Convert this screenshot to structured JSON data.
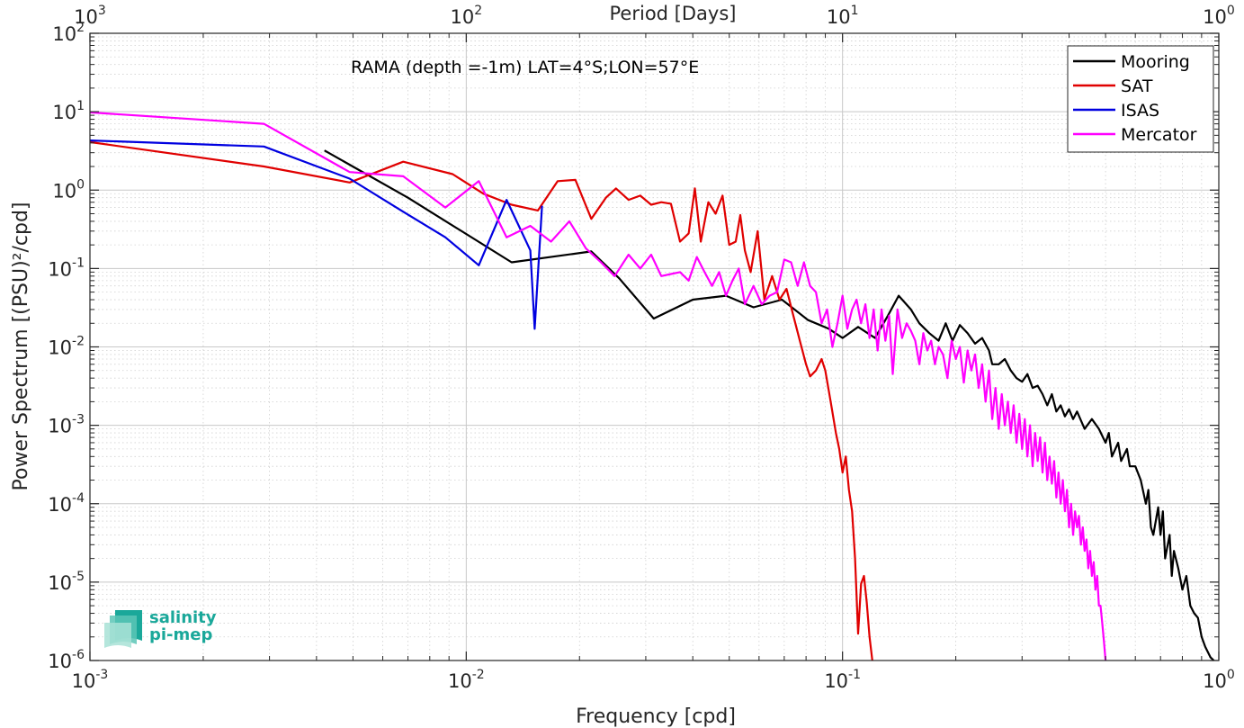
{
  "chart_data": {
    "type": "line",
    "xscale": "log",
    "yscale": "log",
    "xlim": [
      0.001,
      1
    ],
    "ylim": [
      1e-06,
      100
    ],
    "grid": true,
    "xlabel": "Frequency [cpd]",
    "ylabel": "Power Spectrum [(PSU)²/cpd]",
    "top_axis_label": "Period [Days]",
    "annotation": "RAMA (depth =-1m) LAT=4°S;LON=57°E",
    "legend_position": "top-right",
    "x_ticks": [
      {
        "value": 0.001,
        "base": "10",
        "exp": "-3"
      },
      {
        "value": 0.01,
        "base": "10",
        "exp": "-2"
      },
      {
        "value": 0.1,
        "base": "10",
        "exp": "-1"
      },
      {
        "value": 1,
        "base": "10",
        "exp": "0"
      }
    ],
    "top_ticks": [
      {
        "value": 0.001,
        "base": "10",
        "exp": "3"
      },
      {
        "value": 0.01,
        "base": "10",
        "exp": "2"
      },
      {
        "value": 0.1,
        "base": "10",
        "exp": "1"
      },
      {
        "value": 1,
        "base": "10",
        "exp": "0"
      }
    ],
    "y_ticks": [
      {
        "value": 1e-06,
        "base": "10",
        "exp": "-6"
      },
      {
        "value": 1e-05,
        "base": "10",
        "exp": "-5"
      },
      {
        "value": 0.0001,
        "base": "10",
        "exp": "-4"
      },
      {
        "value": 0.001,
        "base": "10",
        "exp": "-3"
      },
      {
        "value": 0.01,
        "base": "10",
        "exp": "-2"
      },
      {
        "value": 0.1,
        "base": "10",
        "exp": "-1"
      },
      {
        "value": 1,
        "base": "10",
        "exp": "0"
      },
      {
        "value": 10,
        "base": "10",
        "exp": "1"
      },
      {
        "value": 100,
        "base": "10",
        "exp": "2"
      }
    ],
    "series": [
      {
        "name": "Mooring",
        "color": "#000000",
        "points": [
          [
            0.0042,
            3.2
          ],
          [
            0.007,
            0.8
          ],
          [
            0.0132,
            0.12
          ],
          [
            0.0215,
            0.165
          ],
          [
            0.0255,
            0.075
          ],
          [
            0.0315,
            0.023
          ],
          [
            0.04,
            0.04
          ],
          [
            0.049,
            0.045
          ],
          [
            0.058,
            0.032
          ],
          [
            0.069,
            0.04
          ],
          [
            0.081,
            0.022
          ],
          [
            0.092,
            0.017
          ],
          [
            0.1,
            0.013
          ],
          [
            0.11,
            0.018
          ],
          [
            0.122,
            0.013
          ],
          [
            0.132,
            0.025
          ],
          [
            0.141,
            0.045
          ],
          [
            0.152,
            0.03
          ],
          [
            0.16,
            0.02
          ],
          [
            0.17,
            0.015
          ],
          [
            0.18,
            0.012
          ],
          [
            0.188,
            0.02
          ],
          [
            0.196,
            0.012
          ],
          [
            0.205,
            0.019
          ],
          [
            0.215,
            0.015
          ],
          [
            0.225,
            0.011
          ],
          [
            0.235,
            0.013
          ],
          [
            0.245,
            0.009
          ],
          [
            0.25,
            0.006
          ],
          [
            0.26,
            0.006
          ],
          [
            0.27,
            0.007
          ],
          [
            0.28,
            0.005
          ],
          [
            0.29,
            0.004
          ],
          [
            0.3,
            0.0036
          ],
          [
            0.31,
            0.0045
          ],
          [
            0.32,
            0.003
          ],
          [
            0.33,
            0.0032
          ],
          [
            0.34,
            0.0025
          ],
          [
            0.35,
            0.0018
          ],
          [
            0.36,
            0.0025
          ],
          [
            0.37,
            0.0015
          ],
          [
            0.38,
            0.0018
          ],
          [
            0.39,
            0.0013
          ],
          [
            0.4,
            0.0016
          ],
          [
            0.41,
            0.0012
          ],
          [
            0.42,
            0.0015
          ],
          [
            0.44,
            0.0009
          ],
          [
            0.46,
            0.0012
          ],
          [
            0.48,
            0.0009
          ],
          [
            0.5,
            0.0006
          ],
          [
            0.51,
            0.0008
          ],
          [
            0.52,
            0.0004
          ],
          [
            0.54,
            0.0006
          ],
          [
            0.55,
            0.00035
          ],
          [
            0.57,
            0.0005
          ],
          [
            0.58,
            0.0003
          ],
          [
            0.6,
            0.0003
          ],
          [
            0.62,
            0.0002
          ],
          [
            0.64,
            0.0001
          ],
          [
            0.65,
            0.00015
          ],
          [
            0.66,
            5e-05
          ],
          [
            0.67,
            4e-05
          ],
          [
            0.69,
            9e-05
          ],
          [
            0.7,
            4e-05
          ],
          [
            0.71,
            8e-05
          ],
          [
            0.72,
            2e-05
          ],
          [
            0.74,
            4e-05
          ],
          [
            0.75,
            1.2e-05
          ],
          [
            0.76,
            2.5e-05
          ],
          [
            0.78,
            1.5e-05
          ],
          [
            0.8,
            8e-06
          ],
          [
            0.82,
            1.2e-05
          ],
          [
            0.84,
            5e-06
          ],
          [
            0.86,
            4e-06
          ],
          [
            0.88,
            3.5e-06
          ],
          [
            0.9,
            2e-06
          ],
          [
            0.92,
            1.5e-06
          ],
          [
            0.95,
            1.1e-06
          ],
          [
            0.97,
            1e-06
          ]
        ]
      },
      {
        "name": "SAT",
        "color": "#e00000",
        "points": [
          [
            0.001,
            4.1
          ],
          [
            0.0029,
            2.0
          ],
          [
            0.0049,
            1.25
          ],
          [
            0.0068,
            2.3
          ],
          [
            0.0092,
            1.6
          ],
          [
            0.0111,
            0.9
          ],
          [
            0.0132,
            0.65
          ],
          [
            0.0155,
            0.55
          ],
          [
            0.0175,
            1.3
          ],
          [
            0.0195,
            1.35
          ],
          [
            0.0215,
            0.43
          ],
          [
            0.0235,
            0.8
          ],
          [
            0.025,
            1.05
          ],
          [
            0.027,
            0.75
          ],
          [
            0.029,
            0.85
          ],
          [
            0.031,
            0.65
          ],
          [
            0.033,
            0.7
          ],
          [
            0.035,
            0.67
          ],
          [
            0.037,
            0.22
          ],
          [
            0.039,
            0.28
          ],
          [
            0.0405,
            1.05
          ],
          [
            0.042,
            0.22
          ],
          [
            0.044,
            0.7
          ],
          [
            0.046,
            0.5
          ],
          [
            0.048,
            0.85
          ],
          [
            0.05,
            0.2
          ],
          [
            0.052,
            0.22
          ],
          [
            0.0535,
            0.48
          ],
          [
            0.055,
            0.17
          ],
          [
            0.057,
            0.09
          ],
          [
            0.0595,
            0.3
          ],
          [
            0.062,
            0.04
          ],
          [
            0.065,
            0.08
          ],
          [
            0.068,
            0.04
          ],
          [
            0.071,
            0.055
          ],
          [
            0.074,
            0.025
          ],
          [
            0.077,
            0.012
          ],
          [
            0.08,
            0.006
          ],
          [
            0.082,
            0.0042
          ],
          [
            0.085,
            0.005
          ],
          [
            0.088,
            0.007
          ],
          [
            0.09,
            0.005
          ],
          [
            0.093,
            0.002
          ],
          [
            0.096,
            0.0008
          ],
          [
            0.098,
            0.0005
          ],
          [
            0.1,
            0.00025
          ],
          [
            0.102,
            0.0004
          ],
          [
            0.104,
            0.00015
          ],
          [
            0.106,
            8e-05
          ],
          [
            0.108,
            2e-05
          ],
          [
            0.11,
            2.2e-06
          ],
          [
            0.112,
            9.5e-06
          ],
          [
            0.114,
            1.2e-05
          ],
          [
            0.116,
            5.5e-06
          ],
          [
            0.118,
            2e-06
          ],
          [
            0.12,
            1e-06
          ]
        ]
      },
      {
        "name": "ISAS",
        "color": "#0000e0",
        "points": [
          [
            0.001,
            4.3
          ],
          [
            0.0029,
            3.6
          ],
          [
            0.0049,
            1.4
          ],
          [
            0.0068,
            0.53
          ],
          [
            0.0088,
            0.25
          ],
          [
            0.0108,
            0.11
          ],
          [
            0.0128,
            0.75
          ],
          [
            0.0148,
            0.17
          ],
          [
            0.0152,
            0.017
          ],
          [
            0.0159,
            0.63
          ]
        ]
      },
      {
        "name": "Mercator",
        "color": "#ff00ff",
        "points": [
          [
            0.001,
            9.8
          ],
          [
            0.0029,
            7.0
          ],
          [
            0.0049,
            1.7
          ],
          [
            0.0068,
            1.5
          ],
          [
            0.0088,
            0.6
          ],
          [
            0.0108,
            1.3
          ],
          [
            0.0128,
            0.25
          ],
          [
            0.0148,
            0.35
          ],
          [
            0.0168,
            0.22
          ],
          [
            0.0188,
            0.4
          ],
          [
            0.0208,
            0.18
          ],
          [
            0.0228,
            0.12
          ],
          [
            0.0248,
            0.08
          ],
          [
            0.027,
            0.15
          ],
          [
            0.029,
            0.1
          ],
          [
            0.031,
            0.15
          ],
          [
            0.033,
            0.08
          ],
          [
            0.035,
            0.085
          ],
          [
            0.037,
            0.09
          ],
          [
            0.039,
            0.07
          ],
          [
            0.041,
            0.14
          ],
          [
            0.043,
            0.09
          ],
          [
            0.045,
            0.06
          ],
          [
            0.047,
            0.09
          ],
          [
            0.049,
            0.045
          ],
          [
            0.051,
            0.07
          ],
          [
            0.053,
            0.1
          ],
          [
            0.055,
            0.035
          ],
          [
            0.058,
            0.06
          ],
          [
            0.061,
            0.035
          ],
          [
            0.064,
            0.045
          ],
          [
            0.067,
            0.05
          ],
          [
            0.07,
            0.13
          ],
          [
            0.073,
            0.12
          ],
          [
            0.076,
            0.06
          ],
          [
            0.079,
            0.12
          ],
          [
            0.082,
            0.06
          ],
          [
            0.085,
            0.05
          ],
          [
            0.088,
            0.02
          ],
          [
            0.091,
            0.03
          ],
          [
            0.094,
            0.01
          ],
          [
            0.097,
            0.02
          ],
          [
            0.1,
            0.045
          ],
          [
            0.103,
            0.017
          ],
          [
            0.106,
            0.03
          ],
          [
            0.109,
            0.04
          ],
          [
            0.112,
            0.02
          ],
          [
            0.115,
            0.035
          ],
          [
            0.118,
            0.013
          ],
          [
            0.121,
            0.03
          ],
          [
            0.124,
            0.009
          ],
          [
            0.127,
            0.03
          ],
          [
            0.13,
            0.012
          ],
          [
            0.133,
            0.025
          ],
          [
            0.136,
            0.0045
          ],
          [
            0.14,
            0.03
          ],
          [
            0.144,
            0.013
          ],
          [
            0.148,
            0.02
          ],
          [
            0.152,
            0.016
          ],
          [
            0.156,
            0.012
          ],
          [
            0.16,
            0.006
          ],
          [
            0.164,
            0.015
          ],
          [
            0.168,
            0.009
          ],
          [
            0.172,
            0.012
          ],
          [
            0.176,
            0.006
          ],
          [
            0.18,
            0.01
          ],
          [
            0.185,
            0.008
          ],
          [
            0.19,
            0.004
          ],
          [
            0.195,
            0.012
          ],
          [
            0.2,
            0.007
          ],
          [
            0.205,
            0.01
          ],
          [
            0.21,
            0.0035
          ],
          [
            0.215,
            0.009
          ],
          [
            0.22,
            0.005
          ],
          [
            0.225,
            0.008
          ],
          [
            0.23,
            0.003
          ],
          [
            0.235,
            0.006
          ],
          [
            0.24,
            0.002
          ],
          [
            0.245,
            0.005
          ],
          [
            0.25,
            0.0012
          ],
          [
            0.255,
            0.003
          ],
          [
            0.26,
            0.0009
          ],
          [
            0.265,
            0.0025
          ],
          [
            0.27,
            0.001
          ],
          [
            0.275,
            0.002
          ],
          [
            0.28,
            0.0008
          ],
          [
            0.285,
            0.0018
          ],
          [
            0.29,
            0.0006
          ],
          [
            0.295,
            0.0014
          ],
          [
            0.3,
            0.0005
          ],
          [
            0.305,
            0.0012
          ],
          [
            0.31,
            0.0004
          ],
          [
            0.315,
            0.001
          ],
          [
            0.32,
            0.0003
          ],
          [
            0.325,
            0.0008
          ],
          [
            0.33,
            0.00035
          ],
          [
            0.335,
            0.0007
          ],
          [
            0.34,
            0.00025
          ],
          [
            0.345,
            0.0006
          ],
          [
            0.35,
            0.0002
          ],
          [
            0.355,
            0.0004
          ],
          [
            0.36,
            0.00018
          ],
          [
            0.365,
            0.00035
          ],
          [
            0.37,
            0.00012
          ],
          [
            0.375,
            0.00025
          ],
          [
            0.38,
            0.0001
          ],
          [
            0.385,
            0.0002
          ],
          [
            0.39,
            8e-05
          ],
          [
            0.395,
            0.00015
          ],
          [
            0.4,
            5e-05
          ],
          [
            0.405,
            0.0001
          ],
          [
            0.41,
            4e-05
          ],
          [
            0.415,
            8e-05
          ],
          [
            0.42,
            5e-05
          ],
          [
            0.425,
            7e-05
          ],
          [
            0.43,
            3e-05
          ],
          [
            0.435,
            5e-05
          ],
          [
            0.44,
            2.5e-05
          ],
          [
            0.445,
            3.5e-05
          ],
          [
            0.45,
            1.5e-05
          ],
          [
            0.455,
            2.5e-05
          ],
          [
            0.46,
            1.2e-05
          ],
          [
            0.465,
            1.8e-05
          ],
          [
            0.47,
            8e-06
          ],
          [
            0.475,
            1.2e-05
          ],
          [
            0.48,
            5e-06
          ],
          [
            0.485,
            5e-06
          ],
          [
            0.49,
            3e-06
          ],
          [
            0.495,
            1.8e-06
          ],
          [
            0.5,
            1e-06
          ]
        ]
      }
    ]
  },
  "logo": {
    "line1": "salinity",
    "line2": "pi-mep"
  }
}
